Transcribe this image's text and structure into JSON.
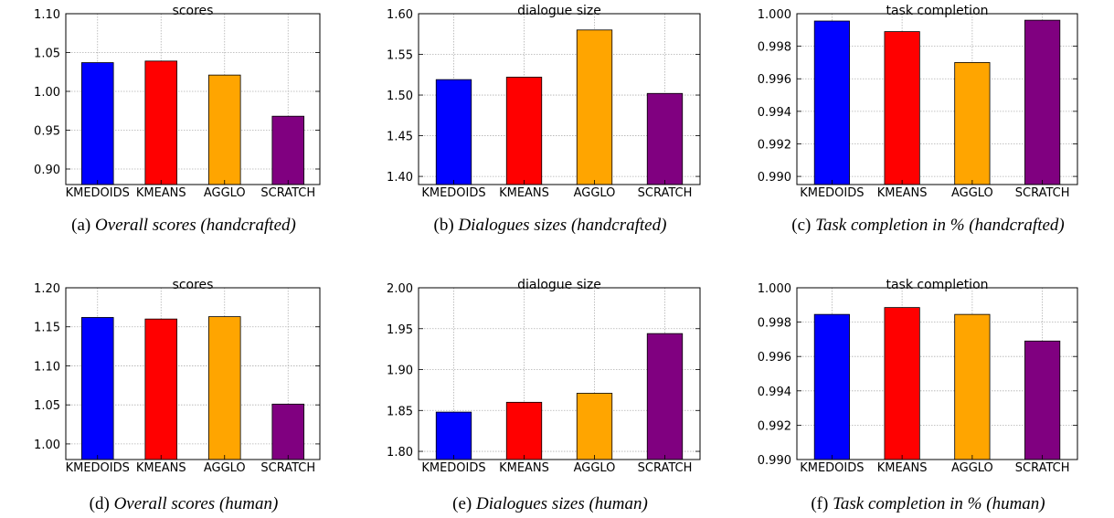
{
  "chart_data": [
    {
      "type": "bar",
      "title": "scores",
      "categories": [
        "KMEDOIDS",
        "KMEANS",
        "AGGLO",
        "SCRATCH"
      ],
      "values": [
        1.037,
        1.039,
        1.021,
        0.968
      ],
      "colors": [
        "#0000ff",
        "#ff0000",
        "#ffa500",
        "#800080"
      ],
      "ylim": [
        0.88,
        1.1
      ],
      "yticks": [
        "0.90",
        "0.95",
        "1.00",
        "1.05",
        "1.10"
      ],
      "grid": true,
      "caption_tag": "(a)",
      "caption_text": "Overall scores (handcrafted)"
    },
    {
      "type": "bar",
      "title": "dialogue size",
      "categories": [
        "KMEDOIDS",
        "KMEANS",
        "AGGLO",
        "SCRATCH"
      ],
      "values": [
        1.519,
        1.522,
        1.58,
        1.502
      ],
      "colors": [
        "#0000ff",
        "#ff0000",
        "#ffa500",
        "#800080"
      ],
      "ylim": [
        1.39,
        1.6
      ],
      "yticks": [
        "1.40",
        "1.45",
        "1.50",
        "1.55",
        "1.60"
      ],
      "grid": true,
      "caption_tag": "(b)",
      "caption_text": "Dialogues sizes (handcrafted)"
    },
    {
      "type": "bar",
      "title": "task completion",
      "categories": [
        "KMEDOIDS",
        "KMEANS",
        "AGGLO",
        "SCRATCH"
      ],
      "values": [
        0.99955,
        0.9989,
        0.997,
        0.9996
      ],
      "colors": [
        "#0000ff",
        "#ff0000",
        "#ffa500",
        "#800080"
      ],
      "ylim": [
        0.9895,
        1.0
      ],
      "yticks": [
        "0.990",
        "0.992",
        "0.994",
        "0.996",
        "0.998",
        "1.000"
      ],
      "grid": true,
      "caption_tag": "(c)",
      "caption_text": "Task completion in % (handcrafted)"
    },
    {
      "type": "bar",
      "title": "scores",
      "categories": [
        "KMEDOIDS",
        "KMEANS",
        "AGGLO",
        "SCRATCH"
      ],
      "values": [
        1.162,
        1.16,
        1.163,
        1.051
      ],
      "colors": [
        "#0000ff",
        "#ff0000",
        "#ffa500",
        "#800080"
      ],
      "ylim": [
        0.98,
        1.2
      ],
      "yticks": [
        "1.00",
        "1.05",
        "1.10",
        "1.15",
        "1.20"
      ],
      "grid": true,
      "caption_tag": "(d)",
      "caption_text": "Overall scores (human)"
    },
    {
      "type": "bar",
      "title": "dialogue size",
      "categories": [
        "KMEDOIDS",
        "KMEANS",
        "AGGLO",
        "SCRATCH"
      ],
      "values": [
        1.848,
        1.86,
        1.871,
        1.944
      ],
      "colors": [
        "#0000ff",
        "#ff0000",
        "#ffa500",
        "#800080"
      ],
      "ylim": [
        1.79,
        2.0
      ],
      "yticks": [
        "1.80",
        "1.85",
        "1.90",
        "1.95",
        "2.00"
      ],
      "grid": true,
      "caption_tag": "(e)",
      "caption_text": "Dialogues sizes (human)"
    },
    {
      "type": "bar",
      "title": "task completion",
      "categories": [
        "KMEDOIDS",
        "KMEANS",
        "AGGLO",
        "SCRATCH"
      ],
      "values": [
        0.99845,
        0.99885,
        0.99845,
        0.9969
      ],
      "colors": [
        "#0000ff",
        "#ff0000",
        "#ffa500",
        "#800080"
      ],
      "ylim": [
        0.99,
        1.0
      ],
      "yticks": [
        "0.990",
        "0.992",
        "0.994",
        "0.996",
        "0.998",
        "1.000"
      ],
      "grid": true,
      "caption_tag": "(f)",
      "caption_text": "Task completion in % (human)"
    }
  ]
}
